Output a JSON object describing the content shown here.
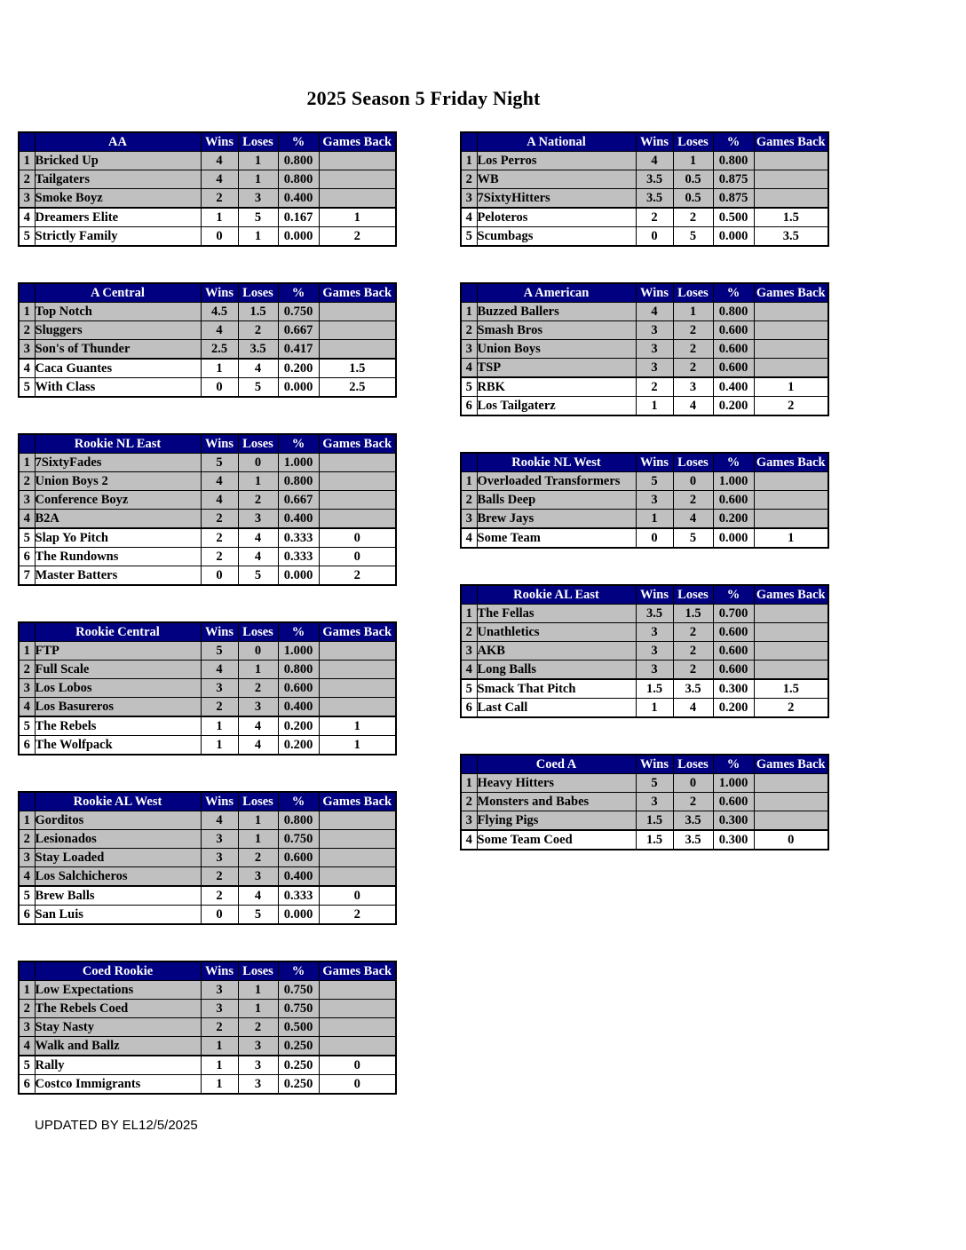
{
  "page": {
    "title": "2025 Season 5 Friday Night",
    "footer": "UPDATED BY EL12/5/2025"
  },
  "colors": {
    "header_bg": "#000080",
    "header_text": "#FFFFFF",
    "shaded_row": "#C0C0C0",
    "row_bg": "#FFFFFF",
    "border": "#000000"
  },
  "column_headers": {
    "wins": "Wins",
    "loses": "Loses",
    "pct": "%",
    "games_back": "Games Back"
  },
  "left_tables": [
    {
      "name": "AA",
      "shaded_rows": 3,
      "rows": [
        {
          "rank": "1",
          "team": "Bricked Up",
          "wins": "4",
          "loses": "1",
          "pct": "0.800",
          "gb": ""
        },
        {
          "rank": "2",
          "team": "Tailgaters",
          "wins": "4",
          "loses": "1",
          "pct": "0.800",
          "gb": ""
        },
        {
          "rank": "3",
          "team": "Smoke Boyz",
          "wins": "2",
          "loses": "3",
          "pct": "0.400",
          "gb": ""
        },
        {
          "rank": "4",
          "team": "Dreamers Elite",
          "wins": "1",
          "loses": "5",
          "pct": "0.167",
          "gb": "1"
        },
        {
          "rank": "5",
          "team": "Strictly Family",
          "wins": "0",
          "loses": "1",
          "pct": "0.000",
          "gb": "2"
        }
      ]
    },
    {
      "name": "A Central",
      "shaded_rows": 3,
      "rows": [
        {
          "rank": "1",
          "team": "Top Notch",
          "wins": "4.5",
          "loses": "1.5",
          "pct": "0.750",
          "gb": ""
        },
        {
          "rank": "2",
          "team": "Sluggers",
          "wins": "4",
          "loses": "2",
          "pct": "0.667",
          "gb": ""
        },
        {
          "rank": "3",
          "team": "Son's of Thunder",
          "wins": "2.5",
          "loses": "3.5",
          "pct": "0.417",
          "gb": ""
        },
        {
          "rank": "4",
          "team": "Caca Guantes",
          "wins": "1",
          "loses": "4",
          "pct": "0.200",
          "gb": "1.5"
        },
        {
          "rank": "5",
          "team": "With Class",
          "wins": "0",
          "loses": "5",
          "pct": "0.000",
          "gb": "2.5"
        }
      ]
    },
    {
      "name": "Rookie NL East",
      "shaded_rows": 4,
      "rows": [
        {
          "rank": "1",
          "team": "7SixtyFades",
          "wins": "5",
          "loses": "0",
          "pct": "1.000",
          "gb": ""
        },
        {
          "rank": "2",
          "team": "Union Boys 2",
          "wins": "4",
          "loses": "1",
          "pct": "0.800",
          "gb": ""
        },
        {
          "rank": "3",
          "team": "Conference Boyz",
          "wins": "4",
          "loses": "2",
          "pct": "0.667",
          "gb": ""
        },
        {
          "rank": "4",
          "team": "B2A",
          "wins": "2",
          "loses": "3",
          "pct": "0.400",
          "gb": ""
        },
        {
          "rank": "5",
          "team": "Slap Yo Pitch",
          "wins": "2",
          "loses": "4",
          "pct": "0.333",
          "gb": "0"
        },
        {
          "rank": "6",
          "team": "The Rundowns",
          "wins": "2",
          "loses": "4",
          "pct": "0.333",
          "gb": "0"
        },
        {
          "rank": "7",
          "team": "Master Batters",
          "wins": "0",
          "loses": "5",
          "pct": "0.000",
          "gb": "2"
        }
      ]
    },
    {
      "name": "Rookie Central",
      "shaded_rows": 4,
      "rows": [
        {
          "rank": "1",
          "team": "FTP",
          "wins": "5",
          "loses": "0",
          "pct": "1.000",
          "gb": ""
        },
        {
          "rank": "2",
          "team": "Full Scale",
          "wins": "4",
          "loses": "1",
          "pct": "0.800",
          "gb": ""
        },
        {
          "rank": "3",
          "team": "Los Lobos",
          "wins": "3",
          "loses": "2",
          "pct": "0.600",
          "gb": ""
        },
        {
          "rank": "4",
          "team": "Los Basureros",
          "wins": "2",
          "loses": "3",
          "pct": "0.400",
          "gb": ""
        },
        {
          "rank": "5",
          "team": "The Rebels",
          "wins": "1",
          "loses": "4",
          "pct": "0.200",
          "gb": "1"
        },
        {
          "rank": "6",
          "team": "The Wolfpack",
          "wins": "1",
          "loses": "4",
          "pct": "0.200",
          "gb": "1"
        }
      ]
    },
    {
      "name": "Rookie AL West",
      "shaded_rows": 4,
      "rows": [
        {
          "rank": "1",
          "team": "Gorditos",
          "wins": "4",
          "loses": "1",
          "pct": "0.800",
          "gb": ""
        },
        {
          "rank": "2",
          "team": "Lesionados",
          "wins": "3",
          "loses": "1",
          "pct": "0.750",
          "gb": ""
        },
        {
          "rank": "3",
          "team": "Stay Loaded",
          "wins": "3",
          "loses": "2",
          "pct": "0.600",
          "gb": ""
        },
        {
          "rank": "4",
          "team": "Los Salchicheros",
          "wins": "2",
          "loses": "3",
          "pct": "0.400",
          "gb": ""
        },
        {
          "rank": "5",
          "team": "Brew Balls",
          "wins": "2",
          "loses": "4",
          "pct": "0.333",
          "gb": "0"
        },
        {
          "rank": "6",
          "team": "San Luis",
          "wins": "0",
          "loses": "5",
          "pct": "0.000",
          "gb": "2"
        }
      ]
    },
    {
      "name": "Coed Rookie",
      "shaded_rows": 4,
      "rows": [
        {
          "rank": "1",
          "team": "Low Expectations",
          "wins": "3",
          "loses": "1",
          "pct": "0.750",
          "gb": ""
        },
        {
          "rank": "2",
          "team": "The Rebels Coed",
          "wins": "3",
          "loses": "1",
          "pct": "0.750",
          "gb": ""
        },
        {
          "rank": "3",
          "team": "Stay Nasty",
          "wins": "2",
          "loses": "2",
          "pct": "0.500",
          "gb": ""
        },
        {
          "rank": "4",
          "team": "Walk and Ballz",
          "wins": "1",
          "loses": "3",
          "pct": "0.250",
          "gb": ""
        },
        {
          "rank": "5",
          "team": "Rally",
          "wins": "1",
          "loses": "3",
          "pct": "0.250",
          "gb": "0"
        },
        {
          "rank": "6",
          "team": "Costco Immigrants",
          "wins": "1",
          "loses": "3",
          "pct": "0.250",
          "gb": "0"
        }
      ]
    }
  ],
  "right_tables": [
    {
      "name": "A National",
      "shaded_rows": 3,
      "rows": [
        {
          "rank": "1",
          "team": "Los Perros",
          "wins": "4",
          "loses": "1",
          "pct": "0.800",
          "gb": ""
        },
        {
          "rank": "2",
          "team": "WB",
          "wins": "3.5",
          "loses": "0.5",
          "pct": "0.875",
          "gb": ""
        },
        {
          "rank": "3",
          "team": "7SixtyHitters",
          "wins": "3.5",
          "loses": "0.5",
          "pct": "0.875",
          "gb": ""
        },
        {
          "rank": "4",
          "team": "Peloteros",
          "wins": "2",
          "loses": "2",
          "pct": "0.500",
          "gb": "1.5"
        },
        {
          "rank": "5",
          "team": "Scumbags",
          "wins": "0",
          "loses": "5",
          "pct": "0.000",
          "gb": "3.5"
        }
      ]
    },
    {
      "name": "A American",
      "shaded_rows": 4,
      "rows": [
        {
          "rank": "1",
          "team": "Buzzed Ballers",
          "wins": "4",
          "loses": "1",
          "pct": "0.800",
          "gb": ""
        },
        {
          "rank": "2",
          "team": "Smash Bros",
          "wins": "3",
          "loses": "2",
          "pct": "0.600",
          "gb": ""
        },
        {
          "rank": "3",
          "team": "Union Boys",
          "wins": "3",
          "loses": "2",
          "pct": "0.600",
          "gb": ""
        },
        {
          "rank": "4",
          "team": "TSP",
          "wins": "3",
          "loses": "2",
          "pct": "0.600",
          "gb": ""
        },
        {
          "rank": "5",
          "team": "RBK",
          "wins": "2",
          "loses": "3",
          "pct": "0.400",
          "gb": "1"
        },
        {
          "rank": "6",
          "team": "Los Tailgaterz",
          "wins": "1",
          "loses": "4",
          "pct": "0.200",
          "gb": "2"
        }
      ]
    },
    {
      "name": "Rookie NL West",
      "shaded_rows": 3,
      "rows": [
        {
          "rank": "1",
          "team": "Overloaded Transformers",
          "wins": "5",
          "loses": "0",
          "pct": "1.000",
          "gb": ""
        },
        {
          "rank": "2",
          "team": "Balls Deep",
          "wins": "3",
          "loses": "2",
          "pct": "0.600",
          "gb": ""
        },
        {
          "rank": "3",
          "team": "Brew Jays",
          "wins": "1",
          "loses": "4",
          "pct": "0.200",
          "gb": ""
        },
        {
          "rank": "4",
          "team": "Some Team",
          "wins": "0",
          "loses": "5",
          "pct": "0.000",
          "gb": "1"
        }
      ]
    },
    {
      "name": "Rookie AL East",
      "shaded_rows": 4,
      "rows": [
        {
          "rank": "1",
          "team": "The Fellas",
          "wins": "3.5",
          "loses": "1.5",
          "pct": "0.700",
          "gb": ""
        },
        {
          "rank": "2",
          "team": "Unathletics",
          "wins": "3",
          "loses": "2",
          "pct": "0.600",
          "gb": ""
        },
        {
          "rank": "3",
          "team": "AKB",
          "wins": "3",
          "loses": "2",
          "pct": "0.600",
          "gb": ""
        },
        {
          "rank": "4",
          "team": "Long Balls",
          "wins": "3",
          "loses": "2",
          "pct": "0.600",
          "gb": ""
        },
        {
          "rank": "5",
          "team": "Smack That Pitch",
          "wins": "1.5",
          "loses": "3.5",
          "pct": "0.300",
          "gb": "1.5"
        },
        {
          "rank": "6",
          "team": "Last Call",
          "wins": "1",
          "loses": "4",
          "pct": "0.200",
          "gb": "2"
        }
      ]
    },
    {
      "name": "Coed A",
      "shaded_rows": 3,
      "rows": [
        {
          "rank": "1",
          "team": "Heavy Hitters",
          "wins": "5",
          "loses": "0",
          "pct": "1.000",
          "gb": ""
        },
        {
          "rank": "2",
          "team": "Monsters and Babes",
          "wins": "3",
          "loses": "2",
          "pct": "0.600",
          "gb": ""
        },
        {
          "rank": "3",
          "team": "Flying Pigs",
          "wins": "1.5",
          "loses": "3.5",
          "pct": "0.300",
          "gb": ""
        },
        {
          "rank": "4",
          "team": "Some Team Coed",
          "wins": "1.5",
          "loses": "3.5",
          "pct": "0.300",
          "gb": "0"
        }
      ]
    }
  ]
}
